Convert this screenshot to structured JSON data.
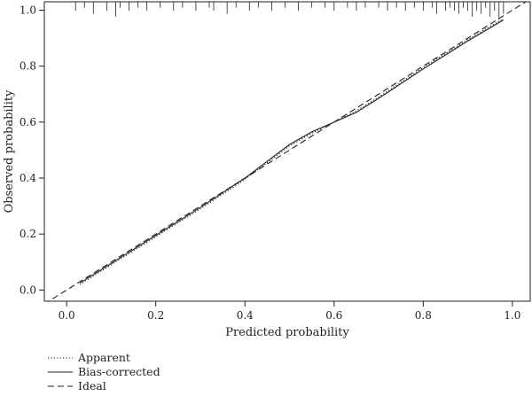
{
  "chart_data": {
    "type": "line",
    "title": "",
    "xlabel": "Predicted probability",
    "ylabel": "Observed probability",
    "xlim": [
      -0.05,
      1.04
    ],
    "ylim": [
      -0.04,
      1.03
    ],
    "x_ticks": [
      0.0,
      0.2,
      0.4,
      0.6,
      0.8,
      1.0
    ],
    "x_tick_labels": [
      "0.0",
      "0.2",
      "0.4",
      "0.6",
      "0.8",
      "1.0"
    ],
    "y_ticks": [
      0.0,
      0.2,
      0.4,
      0.6,
      0.8,
      1.0
    ],
    "y_tick_labels": [
      "0.0",
      "0.2",
      "0.4",
      "0.6",
      "0.8",
      "1.0"
    ],
    "grid": false,
    "legend_position": "bottom-left, below plot",
    "series": [
      {
        "name": "Apparent",
        "line_style": "dotted",
        "x": [
          0.03,
          0.1,
          0.2,
          0.3,
          0.4,
          0.45,
          0.5,
          0.55,
          0.6,
          0.65,
          0.7,
          0.8,
          0.9,
          0.98
        ],
        "y": [
          0.02,
          0.09,
          0.19,
          0.29,
          0.395,
          0.455,
          0.515,
          0.56,
          0.6,
          0.64,
          0.69,
          0.795,
          0.895,
          0.97
        ]
      },
      {
        "name": "Bias-corrected",
        "line_style": "solid",
        "x": [
          0.03,
          0.1,
          0.2,
          0.3,
          0.4,
          0.45,
          0.5,
          0.55,
          0.6,
          0.65,
          0.7,
          0.8,
          0.9,
          0.98
        ],
        "y": [
          0.025,
          0.095,
          0.195,
          0.295,
          0.4,
          0.46,
          0.52,
          0.565,
          0.6,
          0.635,
          0.685,
          0.79,
          0.89,
          0.965
        ]
      },
      {
        "name": "Ideal",
        "line_style": "dashed",
        "x": [
          -0.05,
          1.04
        ],
        "y": [
          -0.05,
          1.04
        ]
      }
    ],
    "rug": {
      "position": "top",
      "x": [
        0.02,
        0.04,
        0.06,
        0.09,
        0.11,
        0.12,
        0.14,
        0.16,
        0.18,
        0.21,
        0.24,
        0.26,
        0.29,
        0.32,
        0.33,
        0.36,
        0.38,
        0.41,
        0.43,
        0.46,
        0.49,
        0.52,
        0.55,
        0.58,
        0.6,
        0.63,
        0.65,
        0.67,
        0.7,
        0.72,
        0.74,
        0.76,
        0.78,
        0.8,
        0.82,
        0.83,
        0.85,
        0.86,
        0.87,
        0.88,
        0.89,
        0.9,
        0.91,
        0.92,
        0.93,
        0.94,
        0.95,
        0.96,
        0.97,
        0.98
      ],
      "heights": [
        0.03,
        0.02,
        0.04,
        0.03,
        0.05,
        0.02,
        0.03,
        0.02,
        0.03,
        0.02,
        0.03,
        0.02,
        0.03,
        0.02,
        0.03,
        0.04,
        0.02,
        0.03,
        0.02,
        0.03,
        0.02,
        0.03,
        0.02,
        0.02,
        0.03,
        0.02,
        0.03,
        0.02,
        0.02,
        0.03,
        0.02,
        0.03,
        0.02,
        0.03,
        0.02,
        0.04,
        0.03,
        0.02,
        0.03,
        0.04,
        0.02,
        0.03,
        0.05,
        0.03,
        0.04,
        0.02,
        0.05,
        0.03,
        0.06,
        0.04
      ]
    }
  },
  "legend": [
    {
      "label": "Apparent",
      "line_style": "dotted"
    },
    {
      "label": "Bias-corrected",
      "line_style": "solid"
    },
    {
      "label": "Ideal",
      "line_style": "dashed"
    }
  ],
  "colors": {
    "line": "#222222",
    "axis": "#222222",
    "background": "#ffffff"
  }
}
